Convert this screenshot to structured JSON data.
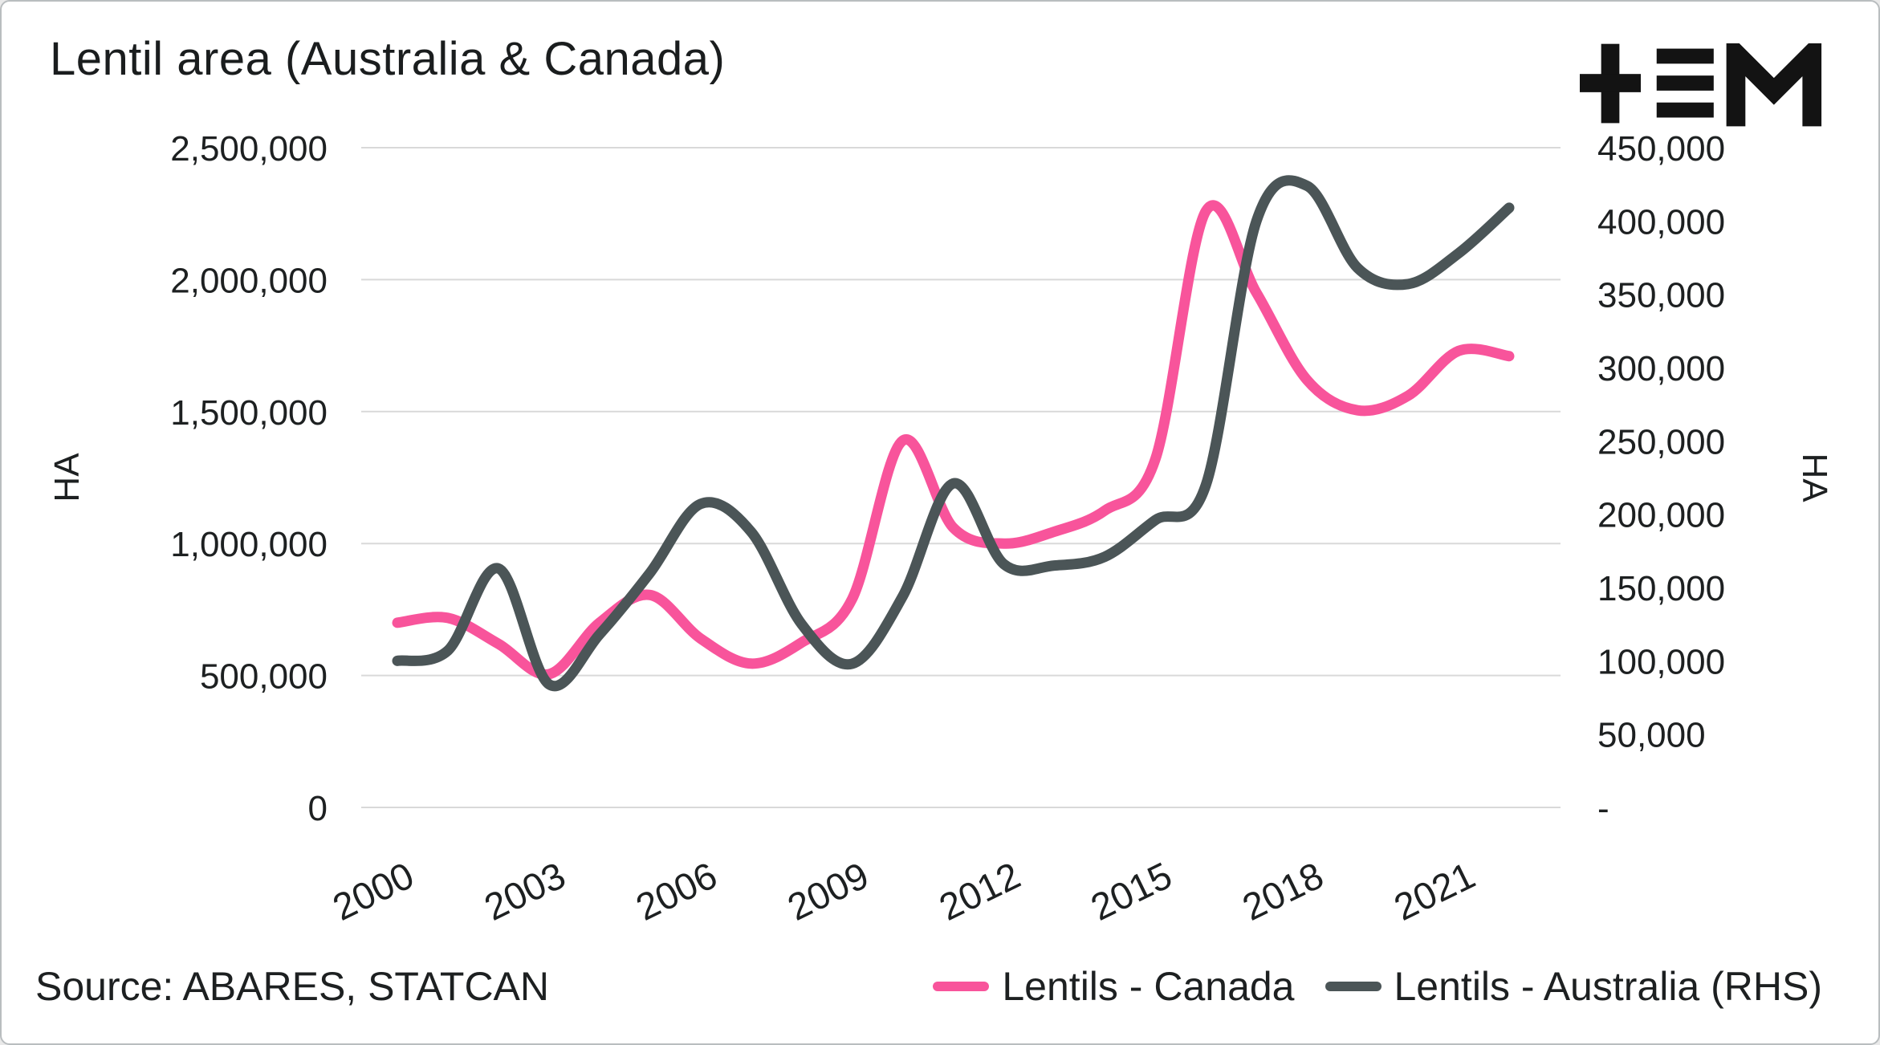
{
  "header": {
    "title": "Lentil area (Australia & Canada)",
    "logo_name": "TEM logo"
  },
  "footer": {
    "source": "Source: ABARES, STATCAN"
  },
  "chart_data": {
    "type": "line",
    "title": "Lentil area (Australia & Canada)",
    "grid": "horizontal",
    "legend_position": "bottom-right",
    "x": [
      2000,
      2001,
      2002,
      2003,
      2004,
      2005,
      2006,
      2007,
      2008,
      2009,
      2010,
      2011,
      2012,
      2013,
      2014,
      2015,
      2016,
      2017,
      2018,
      2019,
      2020,
      2021,
      2022
    ],
    "x_ticks": [
      2000,
      2003,
      2006,
      2009,
      2012,
      2015,
      2018,
      2021
    ],
    "x_tick_labels": [
      "2000",
      "2003",
      "2006",
      "2009",
      "2012",
      "2015",
      "2018",
      "2021"
    ],
    "left_axis": {
      "label": "HA",
      "min": 0,
      "max": 2500000,
      "ticks": [
        "2,500,000",
        "2,000,000",
        "1,500,000",
        "1,000,000",
        "500,000",
        "0"
      ]
    },
    "right_axis": {
      "label": "HA",
      "min": 0,
      "max": 450000,
      "ticks": [
        "450,000",
        "400,000",
        "350,000",
        "300,000",
        "250,000",
        "200,000",
        "150,000",
        "100,000",
        "50,000",
        "-"
      ]
    },
    "series": [
      {
        "name": "Lentils - Canada",
        "axis": "left",
        "color": "#F8549B",
        "values": [
          700000,
          718000,
          620000,
          505000,
          700000,
          805000,
          640000,
          545000,
          625000,
          790000,
          1390000,
          1060000,
          1000000,
          1045000,
          1125000,
          1320000,
          2260000,
          1950000,
          1620000,
          1505000,
          1560000,
          1730000,
          1710000
        ]
      },
      {
        "name": "Lentils - Australia (RHS)",
        "axis": "right",
        "color": "#4B5557",
        "values": [
          100000,
          107000,
          163000,
          84000,
          118000,
          160000,
          207000,
          188000,
          125000,
          98000,
          144000,
          221000,
          166000,
          165000,
          171000,
          196000,
          220000,
          400000,
          424000,
          368000,
          357000,
          378000,
          409000
        ]
      }
    ]
  }
}
